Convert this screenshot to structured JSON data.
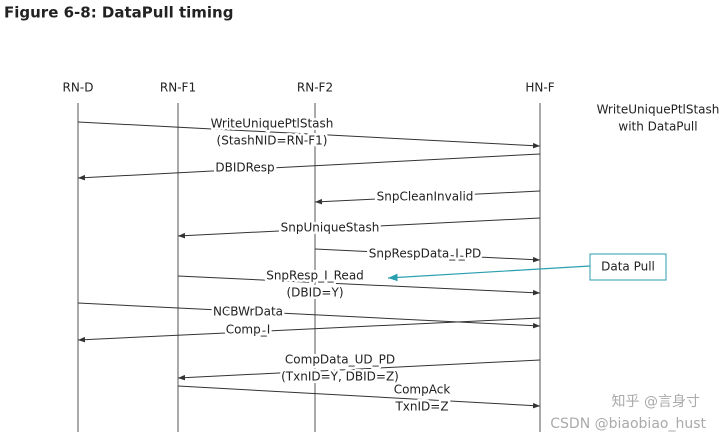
{
  "title": "Figure 6-8: DataPull timing",
  "lifelines": [
    "RN-D",
    "RN-F1",
    "RN-F2",
    "HN-F"
  ],
  "note": [
    "WriteUniquePtlStash",
    "with DataPull"
  ],
  "messages": [
    {
      "lines": [
        "WriteUniquePtlStash",
        "(StashNID=RN-F1)"
      ]
    },
    {
      "lines": [
        "DBIDResp"
      ]
    },
    {
      "lines": [
        "SnpCleanInvalid"
      ]
    },
    {
      "lines": [
        "SnpUniqueStash"
      ]
    },
    {
      "lines": [
        "SnpRespData_I_PD"
      ]
    },
    {
      "lines": [
        "SnpResp_I_Read",
        "(DBID=Y)"
      ]
    },
    {
      "lines": [
        "NCBWrData"
      ]
    },
    {
      "lines": [
        "Comp_I"
      ]
    },
    {
      "lines": [
        "CompData_UD_PD",
        "(TxnID=Y, DBID=Z)"
      ]
    },
    {
      "lines": [
        "CompAck",
        "TxnID=Z"
      ]
    }
  ],
  "callout": "Data Pull",
  "watermark": [
    "知乎 @言身寸",
    "CSDN @biaobiao_hust"
  ]
}
